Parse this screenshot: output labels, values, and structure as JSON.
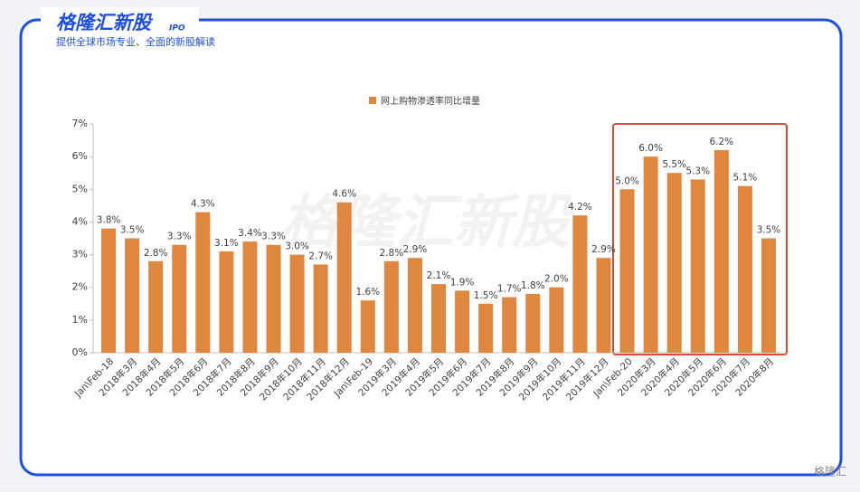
{
  "header": {
    "brand": "格隆汇新股",
    "brand_tag": "IPO",
    "tagline": "提供全球市场专业、全面的新股解读"
  },
  "watermark": "格隆汇新股",
  "footer_logo": "格隆汇",
  "chart_data": {
    "type": "bar",
    "legend": "网上购物渗透率同比增量",
    "categories": [
      "Jan\\Feb-18",
      "2018年3月",
      "2018年4月",
      "2018年5月",
      "2018年6月",
      "2018年7月",
      "2018年8月",
      "2018年9月",
      "2018年10月",
      "2018年11月",
      "2018年12月",
      "Jan\\Feb-19",
      "2019年3月",
      "2019年4月",
      "2019年5月",
      "2019年6月",
      "2019年7月",
      "2019年8月",
      "2019年9月",
      "2019年10月",
      "2019年11月",
      "2019年12月",
      "Jan\\Feb-20",
      "2020年3月",
      "2020年4月",
      "2020年5月",
      "2020年6月",
      "2020年7月",
      "2020年8月"
    ],
    "values": [
      3.8,
      3.5,
      2.8,
      3.3,
      4.3,
      3.1,
      3.4,
      3.3,
      3.0,
      2.7,
      4.6,
      1.6,
      2.8,
      2.9,
      2.1,
      1.9,
      1.5,
      1.7,
      1.8,
      2.0,
      4.2,
      2.9,
      5.0,
      6.0,
      5.5,
      5.3,
      6.2,
      5.1,
      3.5
    ],
    "value_labels": [
      "3.8%",
      "3.5%",
      "2.8%",
      "3.3%",
      "4.3%",
      "3.1%",
      "3.4%",
      "3.3%",
      "3.0%",
      "2.7%",
      "4.6%",
      "1.6%",
      "2.8%",
      "2.9%",
      "2.1%",
      "1.9%",
      "1.5%",
      "1.7%",
      "1.8%",
      "2.0%",
      "4.2%",
      "2.9%",
      "5.0%",
      "6.0%",
      "5.5%",
      "5.3%",
      "6.2%",
      "5.1%",
      "3.5%"
    ],
    "color": "#e0873f",
    "ylim": [
      0,
      7
    ],
    "yticks": [
      {
        "value": 0,
        "label": "0%"
      },
      {
        "value": 1,
        "label": "1%"
      },
      {
        "value": 2,
        "label": "2%"
      },
      {
        "value": 3,
        "label": "3%"
      },
      {
        "value": 4,
        "label": "4%"
      },
      {
        "value": 5,
        "label": "5%"
      },
      {
        "value": 6,
        "label": "6%"
      },
      {
        "value": 7,
        "label": "7%"
      }
    ]
  }
}
